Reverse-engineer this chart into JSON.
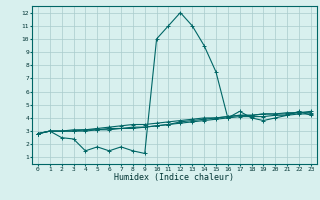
{
  "title": "",
  "xlabel": "Humidex (Indice chaleur)",
  "ylabel": "",
  "bg_color": "#d8f0ee",
  "grid_color": "#aacccc",
  "line_color": "#006666",
  "xlim": [
    -0.5,
    23.5
  ],
  "ylim": [
    0.5,
    12.5
  ],
  "xticks": [
    0,
    1,
    2,
    3,
    4,
    5,
    6,
    7,
    8,
    9,
    10,
    11,
    12,
    13,
    14,
    15,
    16,
    17,
    18,
    19,
    20,
    21,
    22,
    23
  ],
  "yticks": [
    1,
    2,
    3,
    4,
    5,
    6,
    7,
    8,
    9,
    10,
    11,
    12
  ],
  "series": [
    [
      2.8,
      3.0,
      2.5,
      2.4,
      1.5,
      1.8,
      1.5,
      1.8,
      1.5,
      1.3,
      10.0,
      11.0,
      12.0,
      11.0,
      9.5,
      7.5,
      4.0,
      4.5,
      4.0,
      3.8,
      4.0,
      4.2,
      4.5,
      4.2
    ],
    [
      2.8,
      3.0,
      3.0,
      3.0,
      3.0,
      3.1,
      3.1,
      3.2,
      3.2,
      3.3,
      3.4,
      3.5,
      3.6,
      3.7,
      3.8,
      3.9,
      4.0,
      4.1,
      4.1,
      4.1,
      4.2,
      4.2,
      4.3,
      4.3
    ],
    [
      2.8,
      3.0,
      3.0,
      3.0,
      3.1,
      3.1,
      3.2,
      3.2,
      3.3,
      3.3,
      3.4,
      3.5,
      3.7,
      3.8,
      3.9,
      4.0,
      4.1,
      4.2,
      4.2,
      4.3,
      4.3,
      4.3,
      4.4,
      4.4
    ],
    [
      2.8,
      3.0,
      3.0,
      3.1,
      3.1,
      3.2,
      3.3,
      3.4,
      3.5,
      3.5,
      3.6,
      3.7,
      3.8,
      3.9,
      4.0,
      4.0,
      4.1,
      4.2,
      4.2,
      4.3,
      4.3,
      4.4,
      4.4,
      4.5
    ]
  ],
  "xlabel_fontsize": 6,
  "tick_fontsize": 4.5
}
